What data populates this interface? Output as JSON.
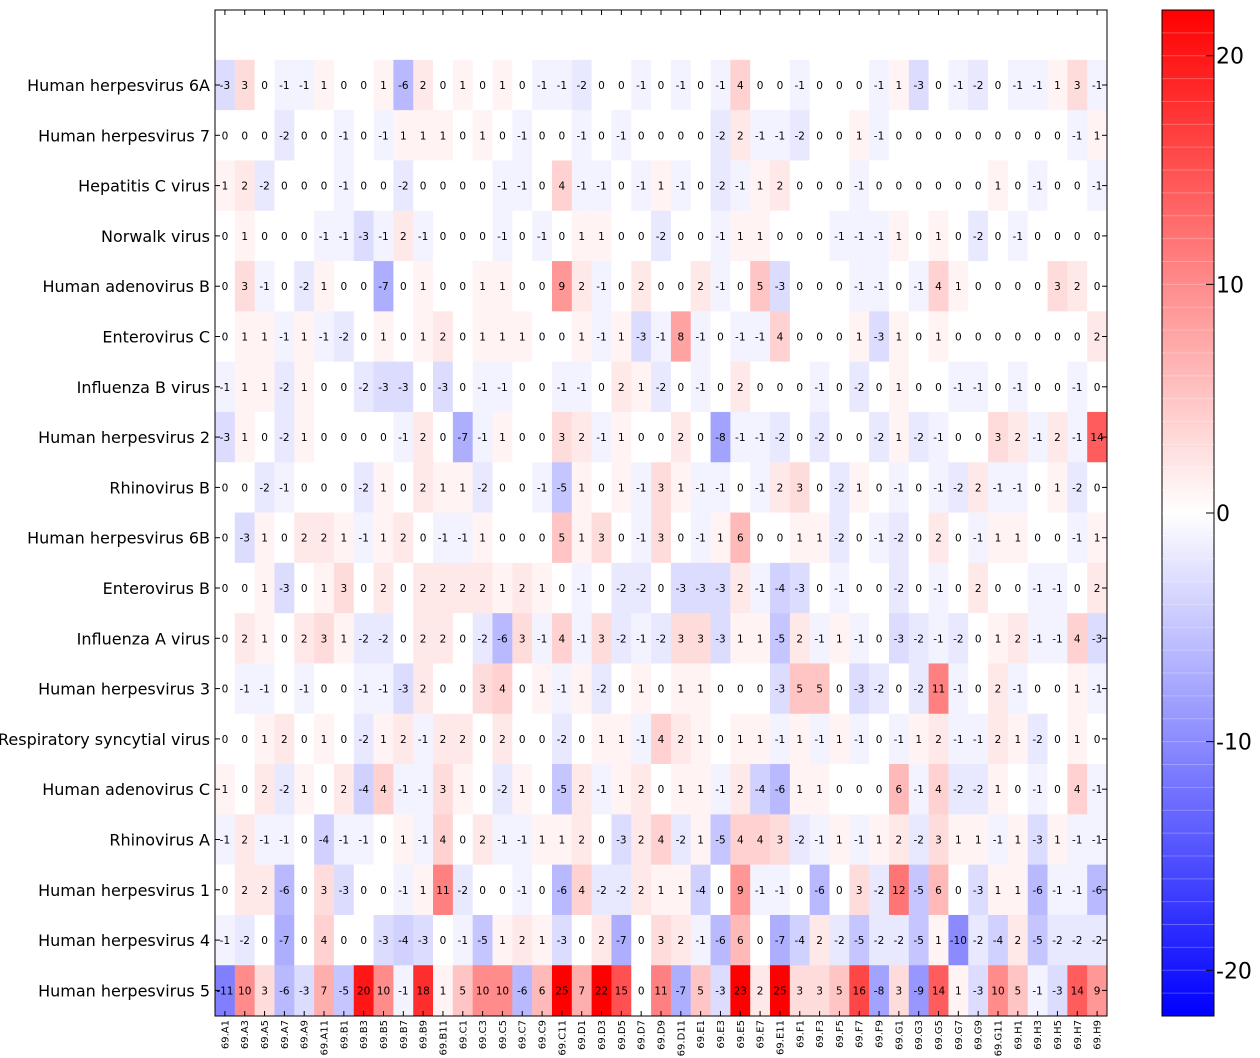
{
  "chart_data": {
    "type": "heatmap",
    "title": "",
    "xlabel": "",
    "ylabel": "",
    "color_scale": {
      "min": -22,
      "max": 22,
      "low_color": "#0000ff",
      "mid_color": "#ffffff",
      "high_color": "#ff0000",
      "ticks": [
        20,
        10,
        0,
        -10,
        -20
      ],
      "tick_labels": [
        "20",
        "10",
        "0",
        "-10",
        "-20"
      ]
    },
    "columns": [
      "69.A1",
      "69.A3",
      "69.A5",
      "69.A7",
      "69.A9",
      "69.A11",
      "69.B1",
      "69.B3",
      "69.B5",
      "69.B7",
      "69.B9",
      "69.B11",
      "69.C1",
      "69.C3",
      "69.C5",
      "69.C7",
      "69.C9",
      "69.C11",
      "69.D1",
      "69.D3",
      "69.D5",
      "69.D7",
      "69.D9",
      "69.D11",
      "69.E1",
      "69.E3",
      "69.E5",
      "69.E7",
      "69.E11",
      "69.F1",
      "69.F3",
      "69.F5",
      "69.F7",
      "69.F9",
      "69.G1",
      "69.G3",
      "69.G5",
      "69.G7",
      "69.G9",
      "69.G11",
      "69.H1",
      "69.H3",
      "69.H5",
      "69.H7",
      "69.H9"
    ],
    "rows": [
      "Human herpesvirus 6A",
      "Human herpesvirus 7",
      "Hepatitis C virus",
      "Norwalk virus",
      "Human adenovirus B",
      "Enterovirus C",
      "Influenza B virus",
      "Human herpesvirus 2",
      "Rhinovirus B",
      "Human herpesvirus 6B",
      "Enterovirus B",
      "Influenza A virus",
      "Human herpesvirus 3",
      "Respiratory syncytial virus",
      "Human adenovirus C",
      "Rhinovirus A",
      "Human herpesvirus 1",
      "Human herpesvirus 4",
      "Human herpesvirus 5"
    ],
    "values": [
      [
        -3,
        3,
        0,
        -1,
        -1,
        1,
        0,
        0,
        1,
        -6,
        2,
        0,
        1,
        0,
        1,
        0,
        -1,
        -1,
        -2,
        0,
        0,
        -1,
        0,
        -1,
        0,
        -1,
        4,
        0,
        0,
        -1,
        0,
        0,
        0,
        -1,
        1,
        -3,
        0,
        -1,
        -2,
        0,
        -1,
        -1,
        1,
        3,
        -1
      ],
      [
        0,
        0,
        0,
        -2,
        0,
        0,
        -1,
        0,
        -1,
        1,
        1,
        1,
        0,
        1,
        0,
        -1,
        0,
        0,
        -1,
        0,
        -1,
        0,
        0,
        0,
        0,
        -2,
        2,
        -1,
        -1,
        -2,
        0,
        0,
        1,
        -1,
        0,
        0,
        0,
        0,
        0,
        0,
        0,
        0,
        0,
        -1,
        1
      ],
      [
        1,
        2,
        -2,
        0,
        0,
        0,
        -1,
        0,
        0,
        -2,
        0,
        0,
        0,
        0,
        -1,
        -1,
        0,
        4,
        -1,
        -1,
        0,
        -1,
        1,
        -1,
        0,
        -2,
        -1,
        1,
        2,
        0,
        0,
        0,
        -1,
        0,
        0,
        0,
        0,
        0,
        0,
        1,
        0,
        -1,
        0,
        0,
        -1
      ],
      [
        0,
        1,
        0,
        0,
        0,
        -1,
        -1,
        -3,
        -1,
        2,
        -1,
        0,
        0,
        0,
        -1,
        0,
        -1,
        0,
        1,
        1,
        0,
        0,
        -2,
        0,
        0,
        -1,
        1,
        1,
        0,
        0,
        0,
        -1,
        -1,
        -1,
        1,
        0,
        1,
        0,
        -2,
        0,
        -1,
        0,
        0,
        0,
        0
      ],
      [
        0,
        3,
        -1,
        0,
        -2,
        1,
        0,
        0,
        -7,
        0,
        1,
        0,
        0,
        1,
        1,
        0,
        0,
        9,
        2,
        -1,
        0,
        2,
        0,
        0,
        2,
        -1,
        0,
        5,
        -3,
        0,
        0,
        0,
        -1,
        -1,
        0,
        -1,
        4,
        1,
        0,
        0,
        0,
        0,
        3,
        2,
        0
      ],
      [
        0,
        1,
        1,
        -1,
        1,
        -1,
        -2,
        0,
        1,
        0,
        1,
        2,
        0,
        1,
        1,
        1,
        0,
        0,
        1,
        -1,
        1,
        -3,
        -1,
        8,
        -1,
        0,
        -1,
        -1,
        4,
        0,
        0,
        0,
        1,
        -3,
        1,
        0,
        1,
        0,
        0,
        0,
        0,
        0,
        0,
        0,
        2
      ],
      [
        -1,
        1,
        1,
        -2,
        1,
        0,
        0,
        -2,
        -3,
        -3,
        0,
        -3,
        0,
        -1,
        -1,
        0,
        0,
        -1,
        -1,
        0,
        2,
        1,
        -2,
        0,
        -1,
        0,
        2,
        0,
        0,
        0,
        -1,
        0,
        -2,
        0,
        1,
        0,
        0,
        -1,
        -1,
        0,
        -1,
        0,
        0,
        -1,
        0
      ],
      [
        -3,
        1,
        0,
        -2,
        1,
        0,
        0,
        0,
        0,
        -1,
        2,
        0,
        -7,
        -1,
        1,
        0,
        0,
        3,
        2,
        -1,
        1,
        0,
        0,
        2,
        0,
        -8,
        -1,
        -1,
        -2,
        0,
        -2,
        0,
        0,
        -2,
        1,
        -2,
        -1,
        0,
        0,
        3,
        2,
        -1,
        2,
        -1,
        14
      ],
      [
        0,
        0,
        -2,
        -1,
        0,
        0,
        0,
        -2,
        1,
        0,
        2,
        1,
        1,
        -2,
        0,
        0,
        -1,
        -5,
        1,
        0,
        1,
        -1,
        3,
        1,
        -1,
        -1,
        0,
        -1,
        2,
        3,
        0,
        -2,
        1,
        0,
        -1,
        0,
        -1,
        -2,
        2,
        -1,
        -1,
        0,
        1,
        -2,
        0
      ],
      [
        0,
        -3,
        1,
        0,
        2,
        2,
        1,
        -1,
        1,
        2,
        0,
        -1,
        -1,
        1,
        0,
        0,
        0,
        5,
        1,
        3,
        0,
        -1,
        3,
        0,
        -1,
        1,
        6,
        0,
        0,
        1,
        1,
        -2,
        0,
        -1,
        -2,
        0,
        2,
        0,
        -1,
        1,
        1,
        0,
        0,
        -1,
        1
      ],
      [
        0,
        0,
        1,
        -3,
        0,
        1,
        3,
        0,
        2,
        0,
        2,
        2,
        2,
        2,
        1,
        2,
        1,
        0,
        -1,
        0,
        -2,
        -2,
        0,
        -3,
        -3,
        -3,
        2,
        -1,
        -4,
        -3,
        0,
        -1,
        0,
        0,
        -2,
        0,
        -1,
        0,
        2,
        0,
        0,
        -1,
        -1,
        0,
        2
      ],
      [
        0,
        2,
        1,
        0,
        2,
        3,
        1,
        -2,
        -2,
        0,
        2,
        2,
        0,
        -2,
        -6,
        3,
        -1,
        4,
        -1,
        3,
        -2,
        -1,
        -2,
        3,
        3,
        -3,
        1,
        1,
        -5,
        2,
        -1,
        1,
        -1,
        0,
        -3,
        -2,
        -1,
        -2,
        0,
        1,
        2,
        -1,
        -1,
        4,
        -3
      ],
      [
        0,
        -1,
        -1,
        0,
        -1,
        0,
        0,
        -1,
        -1,
        -3,
        2,
        0,
        0,
        3,
        4,
        0,
        1,
        -1,
        1,
        -2,
        0,
        1,
        0,
        1,
        1,
        0,
        0,
        0,
        -3,
        5,
        5,
        0,
        -3,
        -2,
        0,
        -2,
        11,
        -1,
        0,
        2,
        -1,
        0,
        0,
        1,
        -1
      ],
      [
        0,
        0,
        1,
        2,
        0,
        1,
        0,
        -2,
        1,
        2,
        -1,
        2,
        2,
        0,
        2,
        0,
        0,
        -2,
        0,
        1,
        1,
        -1,
        4,
        2,
        1,
        0,
        1,
        1,
        -1,
        1,
        -1,
        1,
        -1,
        0,
        -1,
        1,
        2,
        -1,
        -1,
        2,
        1,
        -2,
        0,
        1,
        0
      ],
      [
        1,
        0,
        2,
        -2,
        1,
        0,
        2,
        -4,
        4,
        -1,
        -1,
        3,
        1,
        0,
        -2,
        1,
        0,
        -5,
        2,
        -1,
        1,
        2,
        0,
        1,
        1,
        -1,
        2,
        -4,
        -6,
        1,
        1,
        0,
        0,
        0,
        6,
        -1,
        4,
        -2,
        -2,
        1,
        0,
        -1,
        0,
        4,
        -1
      ],
      [
        -1,
        2,
        -1,
        -1,
        0,
        -4,
        -1,
        -1,
        0,
        1,
        -1,
        4,
        0,
        2,
        -1,
        -1,
        1,
        1,
        2,
        0,
        -3,
        2,
        4,
        -2,
        1,
        -5,
        4,
        4,
        3,
        -2,
        -1,
        1,
        -1,
        1,
        2,
        -2,
        3,
        1,
        1,
        -1,
        1,
        -3,
        1,
        -1,
        -1
      ],
      [
        0,
        2,
        2,
        -6,
        0,
        3,
        -3,
        0,
        0,
        -1,
        1,
        11,
        -2,
        0,
        0,
        -1,
        0,
        -6,
        4,
        -2,
        -2,
        2,
        1,
        1,
        -4,
        0,
        9,
        -1,
        -1,
        0,
        -6,
        0,
        3,
        -2,
        12,
        -5,
        6,
        0,
        -3,
        1,
        1,
        -6,
        -1,
        -1,
        -6
      ],
      [
        -1,
        -2,
        0,
        -7,
        0,
        4,
        0,
        0,
        -3,
        -4,
        -3,
        0,
        -1,
        -5,
        1,
        2,
        1,
        -3,
        0,
        2,
        -7,
        0,
        3,
        2,
        -1,
        -6,
        6,
        0,
        -7,
        -4,
        2,
        -2,
        -5,
        -2,
        -2,
        -5,
        1,
        -10,
        -2,
        -4,
        2,
        -5,
        -2,
        -2,
        -2
      ],
      [
        -11,
        10,
        3,
        -6,
        -3,
        7,
        -5,
        20,
        10,
        -1,
        18,
        1,
        5,
        10,
        10,
        -6,
        6,
        25,
        7,
        22,
        15,
        0,
        11,
        -7,
        5,
        -3,
        23,
        2,
        25,
        3,
        3,
        5,
        16,
        -8,
        3,
        -9,
        14,
        1,
        -3,
        10,
        5,
        -1,
        -3,
        14,
        9
      ]
    ]
  }
}
